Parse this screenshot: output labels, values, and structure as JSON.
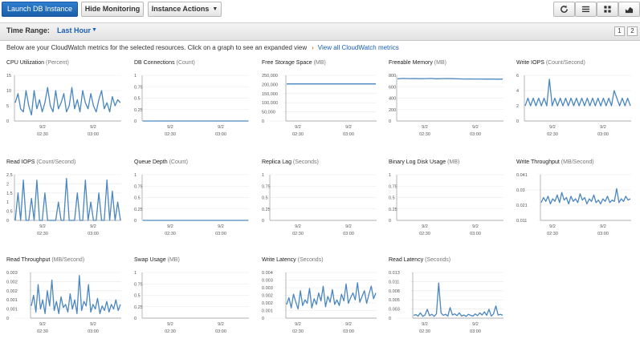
{
  "toolbar": {
    "launch_label": "Launch DB Instance",
    "hide_label": "Hide Monitoring",
    "actions_label": "Instance Actions",
    "icons": [
      "refresh-icon",
      "list-icon",
      "grid-icon",
      "chart-icon"
    ]
  },
  "time_range": {
    "label": "Time Range:",
    "value": "Last Hour",
    "pages": [
      "1",
      "2"
    ]
  },
  "info": {
    "text": "Below are your CloudWatch metrics for the selected resources. Click on a graph to see an expanded view",
    "link": "View all CloudWatch metrics"
  },
  "colors": {
    "line": "#4a86c0",
    "primary": "#1f66b5",
    "link": "#1a5fb4",
    "arrow": "#e47911"
  },
  "chart_data": [
    {
      "type": "line",
      "title": "CPU Utilization",
      "unit": "(Percent)",
      "yticks": [
        "15",
        "10",
        "5",
        "0"
      ],
      "ylim": [
        0,
        15
      ],
      "xticks": [
        [
          "9/2",
          "02:30"
        ],
        [
          "9/2",
          "03:00"
        ]
      ],
      "values": [
        6,
        9,
        4,
        3,
        10,
        5,
        2,
        10,
        4,
        7,
        3,
        6,
        11,
        5,
        3,
        10,
        4,
        6,
        9,
        3,
        5,
        11,
        4,
        7,
        3,
        10,
        6,
        4,
        9,
        5,
        3,
        7,
        10,
        4,
        6,
        3,
        8,
        5,
        7,
        6
      ]
    },
    {
      "type": "line",
      "title": "DB Connections",
      "unit": "(Count)",
      "yticks": [
        "1",
        "0.75",
        "0.5",
        "0.25",
        "0"
      ],
      "ylim": [
        0,
        1
      ],
      "xticks": [
        [
          "9/2",
          "02:30"
        ],
        [
          "9/2",
          "03:00"
        ]
      ],
      "values": [
        0,
        0,
        0,
        0,
        0,
        0,
        0,
        0,
        0,
        0,
        0,
        0,
        0,
        0,
        0,
        0,
        0,
        0,
        0,
        0
      ]
    },
    {
      "type": "line",
      "title": "Free Storage Space",
      "unit": "(MB)",
      "yticks": [
        "250,000",
        "200,000",
        "150,000",
        "100,000",
        "50,000",
        "0"
      ],
      "ylim": [
        0,
        250000
      ],
      "xticks": [
        [
          "9/2",
          "02:30"
        ],
        [
          "9/2",
          "03:00"
        ]
      ],
      "values": [
        203000,
        203000,
        203000,
        203000,
        203000,
        203000,
        203000,
        203000,
        203000,
        203000
      ]
    },
    {
      "type": "line",
      "title": "Freeable Memory",
      "unit": "(MB)",
      "yticks": [
        "800",
        "600",
        "400",
        "200",
        "0"
      ],
      "ylim": [
        0,
        800
      ],
      "xticks": [
        [
          "9/2",
          "02:30"
        ],
        [
          "9/2",
          "03:00"
        ]
      ],
      "values": [
        740,
        745,
        742,
        744,
        741,
        743,
        745,
        740,
        742,
        744,
        741,
        738,
        736,
        737,
        735,
        736,
        734,
        735,
        733,
        734
      ]
    },
    {
      "type": "line",
      "title": "Write IOPS",
      "unit": "(Count/Second)",
      "yticks": [
        "6",
        "4",
        "2",
        "0"
      ],
      "ylim": [
        0,
        6
      ],
      "xticks": [
        [
          "9/2",
          "02:30"
        ],
        [
          "9/2",
          "03:00"
        ]
      ],
      "values": [
        2,
        3,
        2,
        3,
        2,
        3,
        2,
        3,
        2,
        5.5,
        2,
        3,
        2,
        3,
        2,
        3,
        2,
        3,
        2,
        3,
        2,
        3,
        2,
        3,
        2,
        3,
        2,
        3,
        2,
        3,
        2,
        3,
        2,
        4,
        3,
        2,
        3,
        2,
        3,
        2
      ]
    },
    {
      "type": "line",
      "title": "Read IOPS",
      "unit": "(Count/Second)",
      "yticks": [
        "2.5",
        "2",
        "1.5",
        "1",
        "0.5",
        "0"
      ],
      "ylim": [
        0,
        2.5
      ],
      "xticks": [
        [
          "9/2",
          "02:30"
        ],
        [
          "9/2",
          "03:00"
        ]
      ],
      "values": [
        0,
        1.5,
        0,
        2.2,
        0,
        0,
        1.2,
        0,
        2.2,
        0,
        0,
        1.5,
        0,
        0,
        0,
        0,
        1,
        0,
        0,
        2.3,
        0,
        0,
        0,
        1.5,
        0,
        0,
        2.2,
        0,
        1,
        0,
        0,
        1.5,
        0,
        0,
        2.2,
        0,
        1.6,
        0,
        1,
        0
      ]
    },
    {
      "type": "line",
      "title": "Queue Depth",
      "unit": "(Count)",
      "yticks": [
        "1",
        "0.75",
        "0.5",
        "0.25",
        "0"
      ],
      "ylim": [
        0,
        1
      ],
      "xticks": [
        [
          "9/2",
          "02:30"
        ],
        [
          "9/2",
          "03:00"
        ]
      ],
      "values": [
        0,
        0,
        0,
        0,
        0,
        0,
        0,
        0,
        0,
        0,
        0,
        0,
        0,
        0,
        0,
        0,
        0,
        0,
        0,
        0
      ]
    },
    {
      "type": "line",
      "title": "Replica Lag",
      "unit": "(Seconds)",
      "yticks": [
        "1",
        "0.75",
        "0.5",
        "0.25",
        "0"
      ],
      "ylim": [
        0,
        1
      ],
      "xticks": [
        [
          "9/2",
          "02:30"
        ],
        [
          "9/2",
          "03:00"
        ]
      ],
      "values": []
    },
    {
      "type": "line",
      "title": "Binary Log Disk Usage",
      "unit": "(MB)",
      "yticks": [
        "1",
        "0.75",
        "0.5",
        "0.25",
        "0"
      ],
      "ylim": [
        0,
        1
      ],
      "xticks": [
        [
          "9/2",
          "02:30"
        ],
        [
          "9/2",
          "03:00"
        ]
      ],
      "values": []
    },
    {
      "type": "line",
      "title": "Write Throughput",
      "unit": "(MB/Second)",
      "yticks": [
        "0.041",
        "0.03",
        "0.021",
        "0.011"
      ],
      "ylim": [
        0.005,
        0.041
      ],
      "xticks": [
        [
          "9/2",
          "02:30"
        ],
        [
          "9/2",
          "03:00"
        ]
      ],
      "values": [
        0.019,
        0.023,
        0.02,
        0.024,
        0.018,
        0.022,
        0.02,
        0.025,
        0.019,
        0.027,
        0.021,
        0.023,
        0.018,
        0.024,
        0.02,
        0.022,
        0.019,
        0.026,
        0.021,
        0.023,
        0.018,
        0.022,
        0.02,
        0.025,
        0.019,
        0.021,
        0.018,
        0.022,
        0.02,
        0.024,
        0.019,
        0.021,
        0.02,
        0.03,
        0.019,
        0.022,
        0.02,
        0.024,
        0.021,
        0.022
      ]
    },
    {
      "type": "line",
      "title": "Read Throughput",
      "unit": "(MB/Second)",
      "yticks": [
        "0.003",
        "0.002",
        "0.002",
        "0.001",
        "0.001",
        "0"
      ],
      "ylim": [
        0,
        0.003
      ],
      "xticks": [
        [
          "9/2",
          "02:30"
        ],
        [
          "9/2",
          "03:00"
        ]
      ],
      "values": [
        0.0008,
        0.0015,
        0.0004,
        0.0022,
        0.0006,
        0.0012,
        0.0003,
        0.0018,
        0.0008,
        0.0025,
        0.0005,
        0.0011,
        0.0003,
        0.0014,
        0.0007,
        0.0009,
        0.0004,
        0.0016,
        0.0006,
        0.0012,
        0.0003,
        0.0028,
        0.0005,
        0.0011,
        0.0008,
        0.0022,
        0.0004,
        0.0009,
        0.0006,
        0.0013,
        0.0003,
        0.0008,
        0.0005,
        0.0011,
        0.0004,
        0.0009,
        0.0006,
        0.0012,
        0.0005,
        0.0009
      ]
    },
    {
      "type": "line",
      "title": "Swap Usage",
      "unit": "(MB)",
      "yticks": [
        "1",
        "0.75",
        "0.5",
        "0.25",
        "0"
      ],
      "ylim": [
        0,
        1
      ],
      "xticks": [
        [
          "9/2",
          "02:30"
        ],
        [
          "9/2",
          "03:00"
        ]
      ],
      "values": []
    },
    {
      "type": "line",
      "title": "Write Latency",
      "unit": "(Seconds)",
      "yticks": [
        "0.004",
        "0.003",
        "0.003",
        "0.002",
        "0.002",
        "0.001",
        "0"
      ],
      "ylim": [
        0,
        0.004
      ],
      "xticks": [
        [
          "9/2",
          "02:30"
        ],
        [
          "9/2",
          "03:00"
        ]
      ],
      "values": [
        0.0012,
        0.0018,
        0.0009,
        0.0021,
        0.0014,
        0.0008,
        0.0024,
        0.0011,
        0.0016,
        0.0013,
        0.0026,
        0.0009,
        0.0017,
        0.0012,
        0.0022,
        0.0015,
        0.0028,
        0.001,
        0.0019,
        0.0014,
        0.0025,
        0.0012,
        0.0016,
        0.0011,
        0.0021,
        0.0015,
        0.003,
        0.0013,
        0.0018,
        0.0022,
        0.0016,
        0.0031,
        0.0014,
        0.0019,
        0.0024,
        0.0013,
        0.0021,
        0.0028,
        0.0017,
        0.0022
      ]
    },
    {
      "type": "line",
      "title": "Read Latency",
      "unit": "(Seconds)",
      "yticks": [
        "0.013",
        "0.011",
        "0.008",
        "0.005",
        "0.003",
        "0"
      ],
      "ylim": [
        0,
        0.013
      ],
      "xticks": [
        [
          "9/2",
          "02:30"
        ],
        [
          "9/2",
          "03:00"
        ]
      ],
      "values": [
        0.0008,
        0.001,
        0.0006,
        0.0015,
        0.0005,
        0.0009,
        0.0025,
        0.0007,
        0.0011,
        0.0005,
        0.0012,
        0.01,
        0.0015,
        0.0008,
        0.0011,
        0.0006,
        0.003,
        0.0009,
        0.0012,
        0.0007,
        0.0015,
        0.0006,
        0.0009,
        0.0005,
        0.0011,
        0.0008,
        0.0006,
        0.0012,
        0.0007,
        0.0015,
        0.0009,
        0.0018,
        0.0008,
        0.0025,
        0.0006,
        0.0012,
        0.0035,
        0.0009,
        0.0011,
        0.0008
      ]
    }
  ]
}
